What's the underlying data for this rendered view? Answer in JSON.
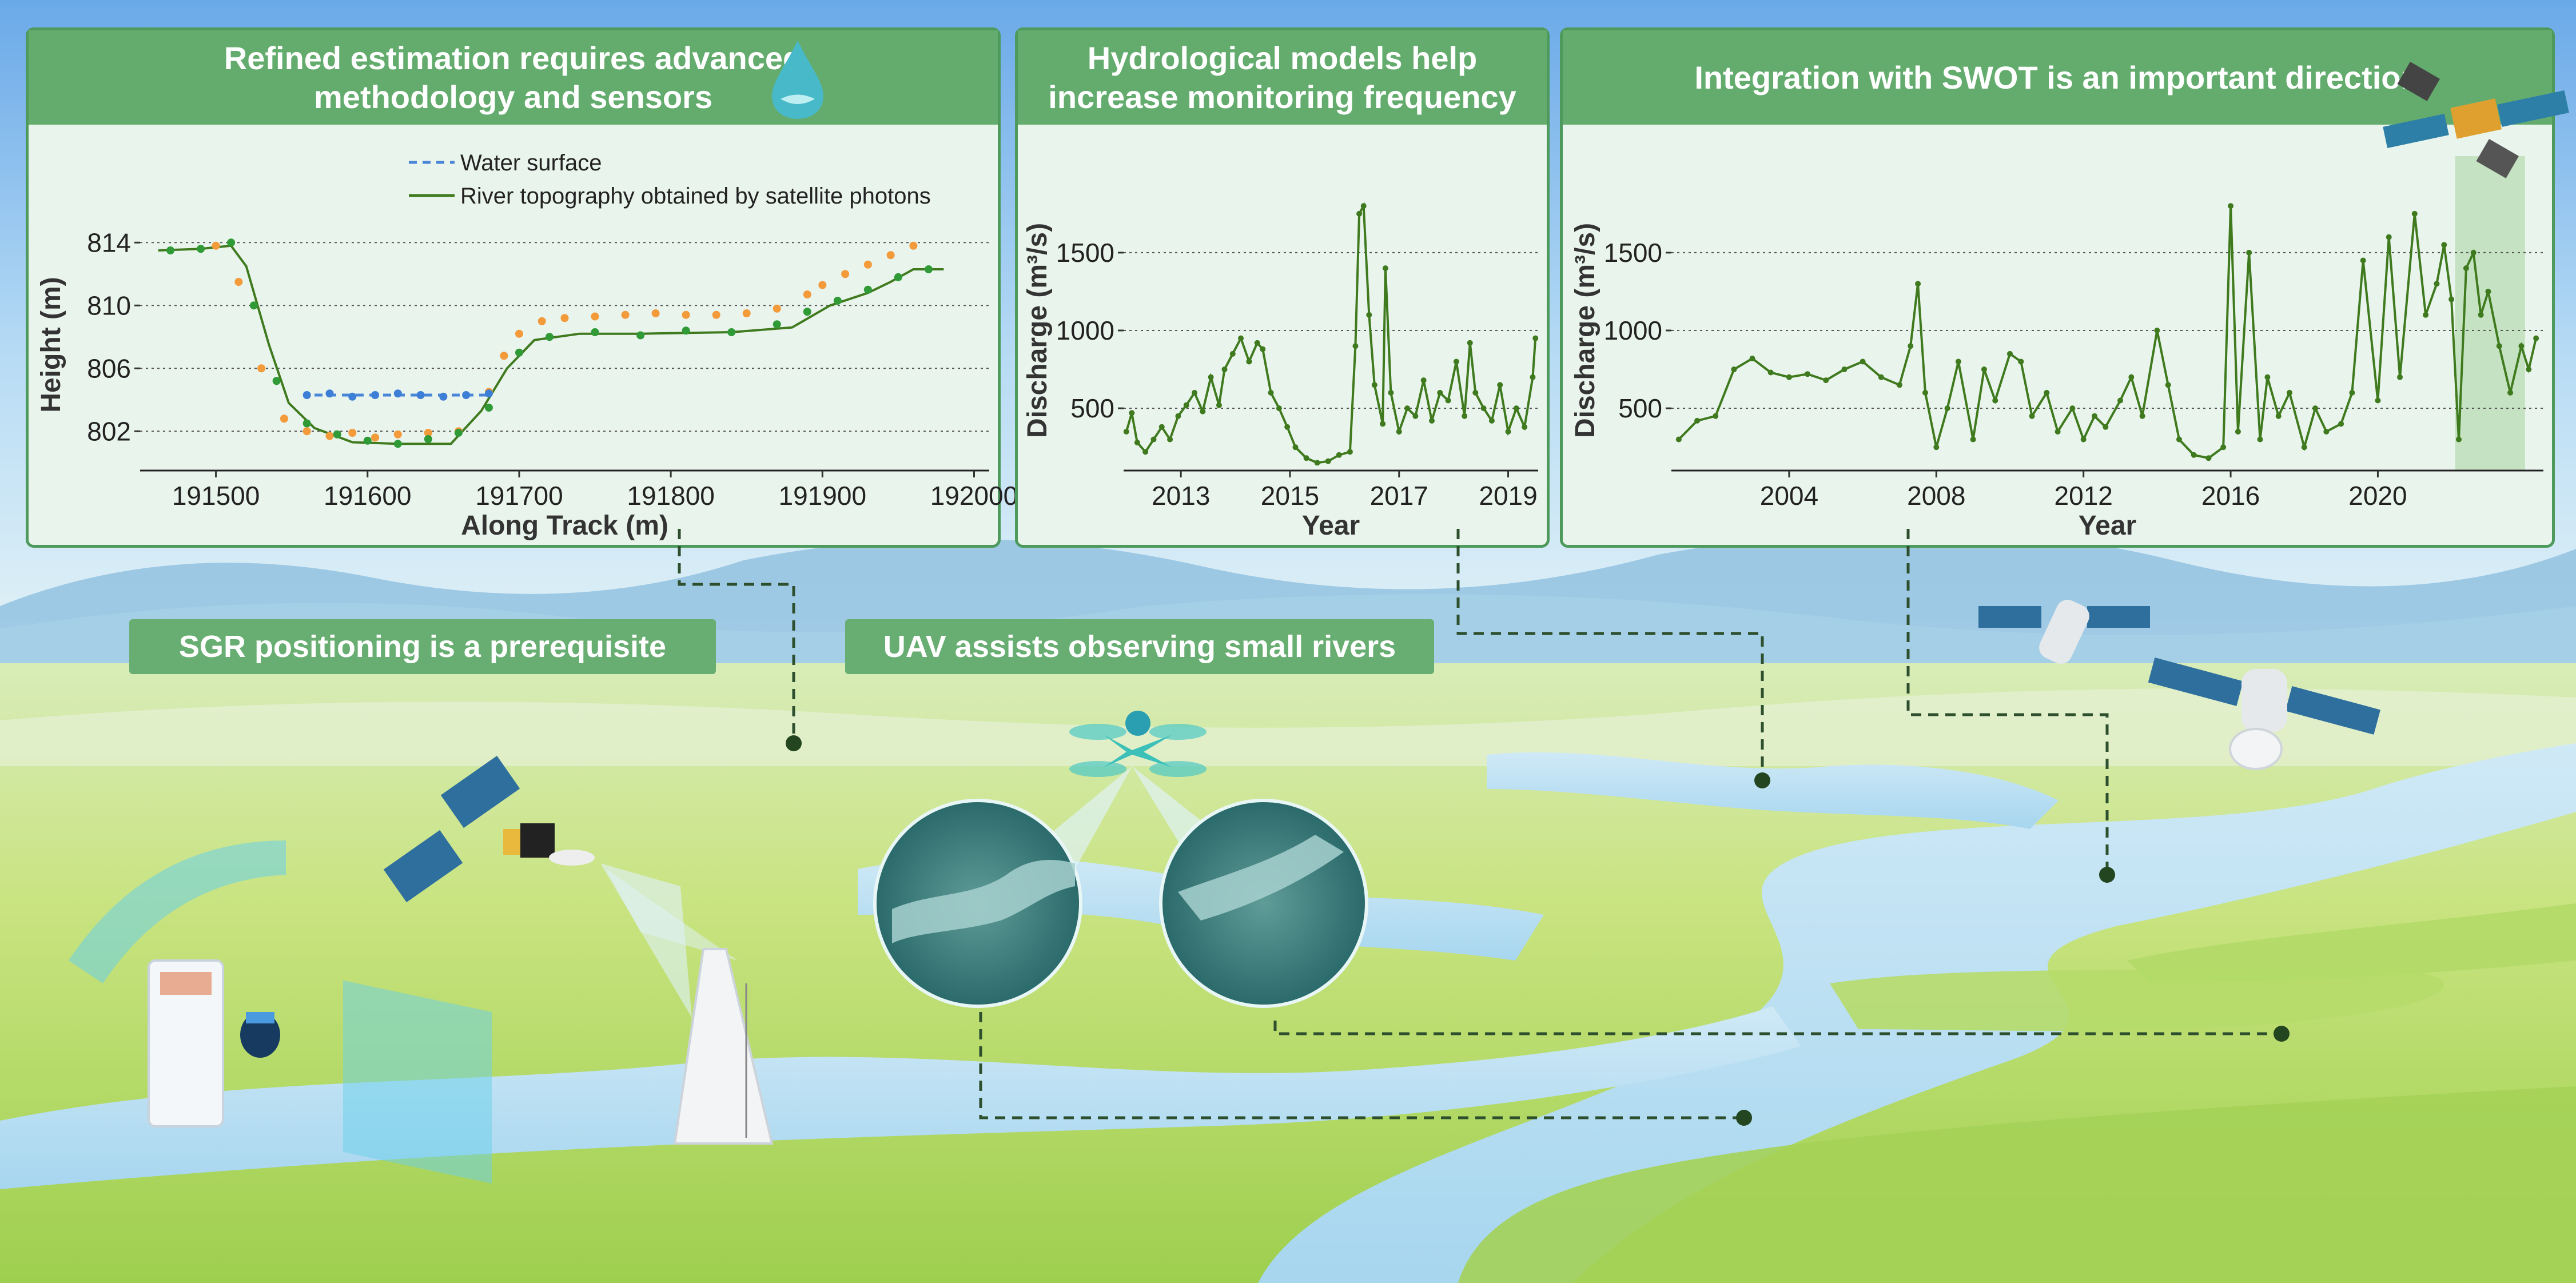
{
  "panels": {
    "p1": {
      "title_1": "Refined estimation requires advanced",
      "title_2": "methodology and sensors"
    },
    "p2": {
      "title_1": "Hydrological models help",
      "title_2": "increase monitoring frequency"
    },
    "p3": {
      "title": "Integration with SWOT is an important direction"
    }
  },
  "labels": {
    "sgr": "SGR positioning is a prerequisite",
    "uav": "UAV assists observing small rivers"
  },
  "colors": {
    "panel_green": "#64ac6e",
    "line_green": "#3f7a1e",
    "orange": "#f39a3a",
    "blue": "#4a86d8",
    "swot_band": "#a8d6a0"
  },
  "chart_data": [
    {
      "type": "scatter",
      "xlabel": "Along Track (m)",
      "ylabel": "Height (m)",
      "xlim": [
        191450,
        192010
      ],
      "ylim": [
        799.5,
        815.5
      ],
      "xticks": [
        "191500",
        "191600",
        "191700",
        "191800",
        "191900",
        "192000"
      ],
      "yticks": [
        "802",
        "806",
        "810",
        "814"
      ],
      "legend": [
        "Water surface",
        "River topography obtained by satellite photons"
      ],
      "legend_position": "top",
      "grid": "horizontal dotted",
      "series": [
        {
          "name": "Water surface",
          "style": "dashed",
          "color": "#4a86d8",
          "x": [
            191565,
            191680
          ],
          "y": [
            804.3,
            804.3
          ]
        },
        {
          "name": "River topography obtained by satellite photons",
          "style": "line",
          "color": "#3f7a1e",
          "x": [
            191462,
            191490,
            191510,
            191520,
            191535,
            191548,
            191565,
            191590,
            191620,
            191655,
            191675,
            191692,
            191710,
            191740,
            191780,
            191840,
            191880,
            191905,
            191930,
            191945,
            191960,
            191980
          ],
          "y": [
            813.5,
            813.6,
            813.8,
            812.5,
            807.5,
            803.8,
            802.2,
            801.3,
            801.2,
            801.2,
            803.3,
            806.0,
            807.8,
            808.2,
            808.2,
            808.3,
            808.6,
            810.0,
            810.8,
            811.5,
            812.3,
            812.3
          ]
        },
        {
          "name": "satellite photons (orange)",
          "style": "points",
          "color": "#f39a3a",
          "x": [
            191500,
            191515,
            191530,
            191545,
            191560,
            191575,
            191590,
            191605,
            191620,
            191640,
            191660,
            191680,
            191690,
            191700,
            191715,
            191730,
            191750,
            191770,
            191790,
            191810,
            191830,
            191850,
            191870,
            191890,
            191900,
            191915,
            191930,
            191945,
            191960
          ],
          "y": [
            813.8,
            811.5,
            806.0,
            802.8,
            802.0,
            801.7,
            801.9,
            801.6,
            801.8,
            801.9,
            802.0,
            804.5,
            806.8,
            808.2,
            809.0,
            809.2,
            809.3,
            809.4,
            809.5,
            809.4,
            809.4,
            809.5,
            809.8,
            810.7,
            811.3,
            812.0,
            812.6,
            813.2,
            813.8
          ]
        },
        {
          "name": "satellite photons (green)",
          "style": "points",
          "color": "#2f9a36",
          "x": [
            191470,
            191490,
            191510,
            191525,
            191540,
            191560,
            191580,
            191600,
            191620,
            191640,
            191660,
            191680,
            191700,
            191720,
            191750,
            191780,
            191810,
            191840,
            191870,
            191890,
            191910,
            191930,
            191950,
            191970
          ],
          "y": [
            813.5,
            813.6,
            814.0,
            810.0,
            805.2,
            802.5,
            801.8,
            801.4,
            801.2,
            801.5,
            801.9,
            803.5,
            807.0,
            808.0,
            808.3,
            808.1,
            808.4,
            808.3,
            808.8,
            809.6,
            810.3,
            811.0,
            811.8,
            812.3
          ]
        },
        {
          "name": "satellite photons (blue)",
          "style": "points",
          "color": "#3d7fd6",
          "x": [
            191560,
            191575,
            191590,
            191605,
            191620,
            191635,
            191650,
            191665,
            191680
          ],
          "y": [
            804.3,
            804.4,
            804.2,
            804.3,
            804.4,
            804.3,
            804.2,
            804.3,
            804.4
          ]
        }
      ]
    },
    {
      "type": "line",
      "xlabel": "Year",
      "ylabel": "Discharge (m³/s)",
      "xlim": [
        2011.95,
        2019.55
      ],
      "ylim": [
        100,
        1900
      ],
      "xticks": [
        "2013",
        "2015",
        "2017",
        "2019"
      ],
      "yticks": [
        "500",
        "1000",
        "1500"
      ],
      "grid": "horizontal dotted",
      "series": [
        {
          "name": "",
          "color": "#3f7a1e",
          "x": [
            2012.0,
            2012.1,
            2012.2,
            2012.35,
            2012.5,
            2012.65,
            2012.8,
            2012.95,
            2013.1,
            2013.25,
            2013.4,
            2013.55,
            2013.7,
            2013.8,
            2013.95,
            2014.1,
            2014.25,
            2014.4,
            2014.5,
            2014.65,
            2014.8,
            2014.95,
            2015.1,
            2015.3,
            2015.5,
            2015.7,
            2015.9,
            2016.1,
            2016.2,
            2016.27,
            2016.35,
            2016.45,
            2016.55,
            2016.7,
            2016.75,
            2016.85,
            2017.0,
            2017.15,
            2017.3,
            2017.45,
            2017.6,
            2017.75,
            2017.9,
            2018.05,
            2018.2,
            2018.3,
            2018.4,
            2018.55,
            2018.7,
            2018.85,
            2019.0,
            2019.15,
            2019.3,
            2019.45,
            2019.5
          ],
          "y": [
            350,
            470,
            280,
            220,
            300,
            380,
            300,
            450,
            520,
            600,
            480,
            700,
            520,
            750,
            850,
            950,
            800,
            920,
            880,
            600,
            500,
            380,
            250,
            180,
            150,
            160,
            200,
            220,
            900,
            1750,
            1800,
            1100,
            650,
            400,
            1400,
            600,
            350,
            500,
            450,
            680,
            420,
            600,
            550,
            800,
            450,
            920,
            600,
            500,
            420,
            650,
            350,
            500,
            380,
            700,
            950
          ]
        }
      ]
    },
    {
      "type": "line",
      "xlabel": "Year",
      "ylabel": "Discharge (m³/s)",
      "xlim": [
        2000.8,
        2024.5
      ],
      "ylim": [
        100,
        1900
      ],
      "xticks": [
        "2004",
        "2008",
        "2012",
        "2016",
        "2020"
      ],
      "yticks": [
        "500",
        "1000",
        "1500"
      ],
      "grid": "horizontal dotted",
      "highlight_range": [
        2022.1,
        2024.0
      ],
      "series": [
        {
          "name": "",
          "color": "#3f7a1e",
          "x": [
            2001.0,
            2001.5,
            2002.0,
            2002.5,
            2003.0,
            2003.5,
            2004.0,
            2004.5,
            2005.0,
            2005.5,
            2006.0,
            2006.5,
            2007.0,
            2007.3,
            2007.5,
            2007.7,
            2008.0,
            2008.3,
            2008.6,
            2009.0,
            2009.3,
            2009.6,
            2010.0,
            2010.3,
            2010.6,
            2011.0,
            2011.3,
            2011.7,
            2012.0,
            2012.3,
            2012.6,
            2013.0,
            2013.3,
            2013.6,
            2014.0,
            2014.3,
            2014.6,
            2015.0,
            2015.4,
            2015.8,
            2016.0,
            2016.2,
            2016.5,
            2016.8,
            2017.0,
            2017.3,
            2017.6,
            2018.0,
            2018.3,
            2018.6,
            2019.0,
            2019.3,
            2019.6,
            2020.0,
            2020.3,
            2020.6,
            2021.0,
            2021.3,
            2021.6,
            2021.8,
            2022.0,
            2022.2,
            2022.4,
            2022.6,
            2022.8,
            2023.0,
            2023.3,
            2023.6,
            2023.9,
            2024.1,
            2024.3
          ],
          "y": [
            300,
            420,
            450,
            750,
            820,
            730,
            700,
            720,
            680,
            750,
            800,
            700,
            650,
            900,
            1300,
            600,
            250,
            500,
            800,
            300,
            750,
            550,
            850,
            800,
            450,
            600,
            350,
            500,
            300,
            450,
            380,
            550,
            700,
            450,
            1000,
            650,
            300,
            200,
            180,
            250,
            1800,
            350,
            1500,
            300,
            700,
            450,
            600,
            250,
            500,
            350,
            400,
            600,
            1450,
            550,
            1600,
            700,
            1750,
            1100,
            1300,
            1550,
            1200,
            300,
            1400,
            1500,
            1100,
            1250,
            900,
            600,
            900,
            750,
            950
          ]
        }
      ]
    }
  ]
}
